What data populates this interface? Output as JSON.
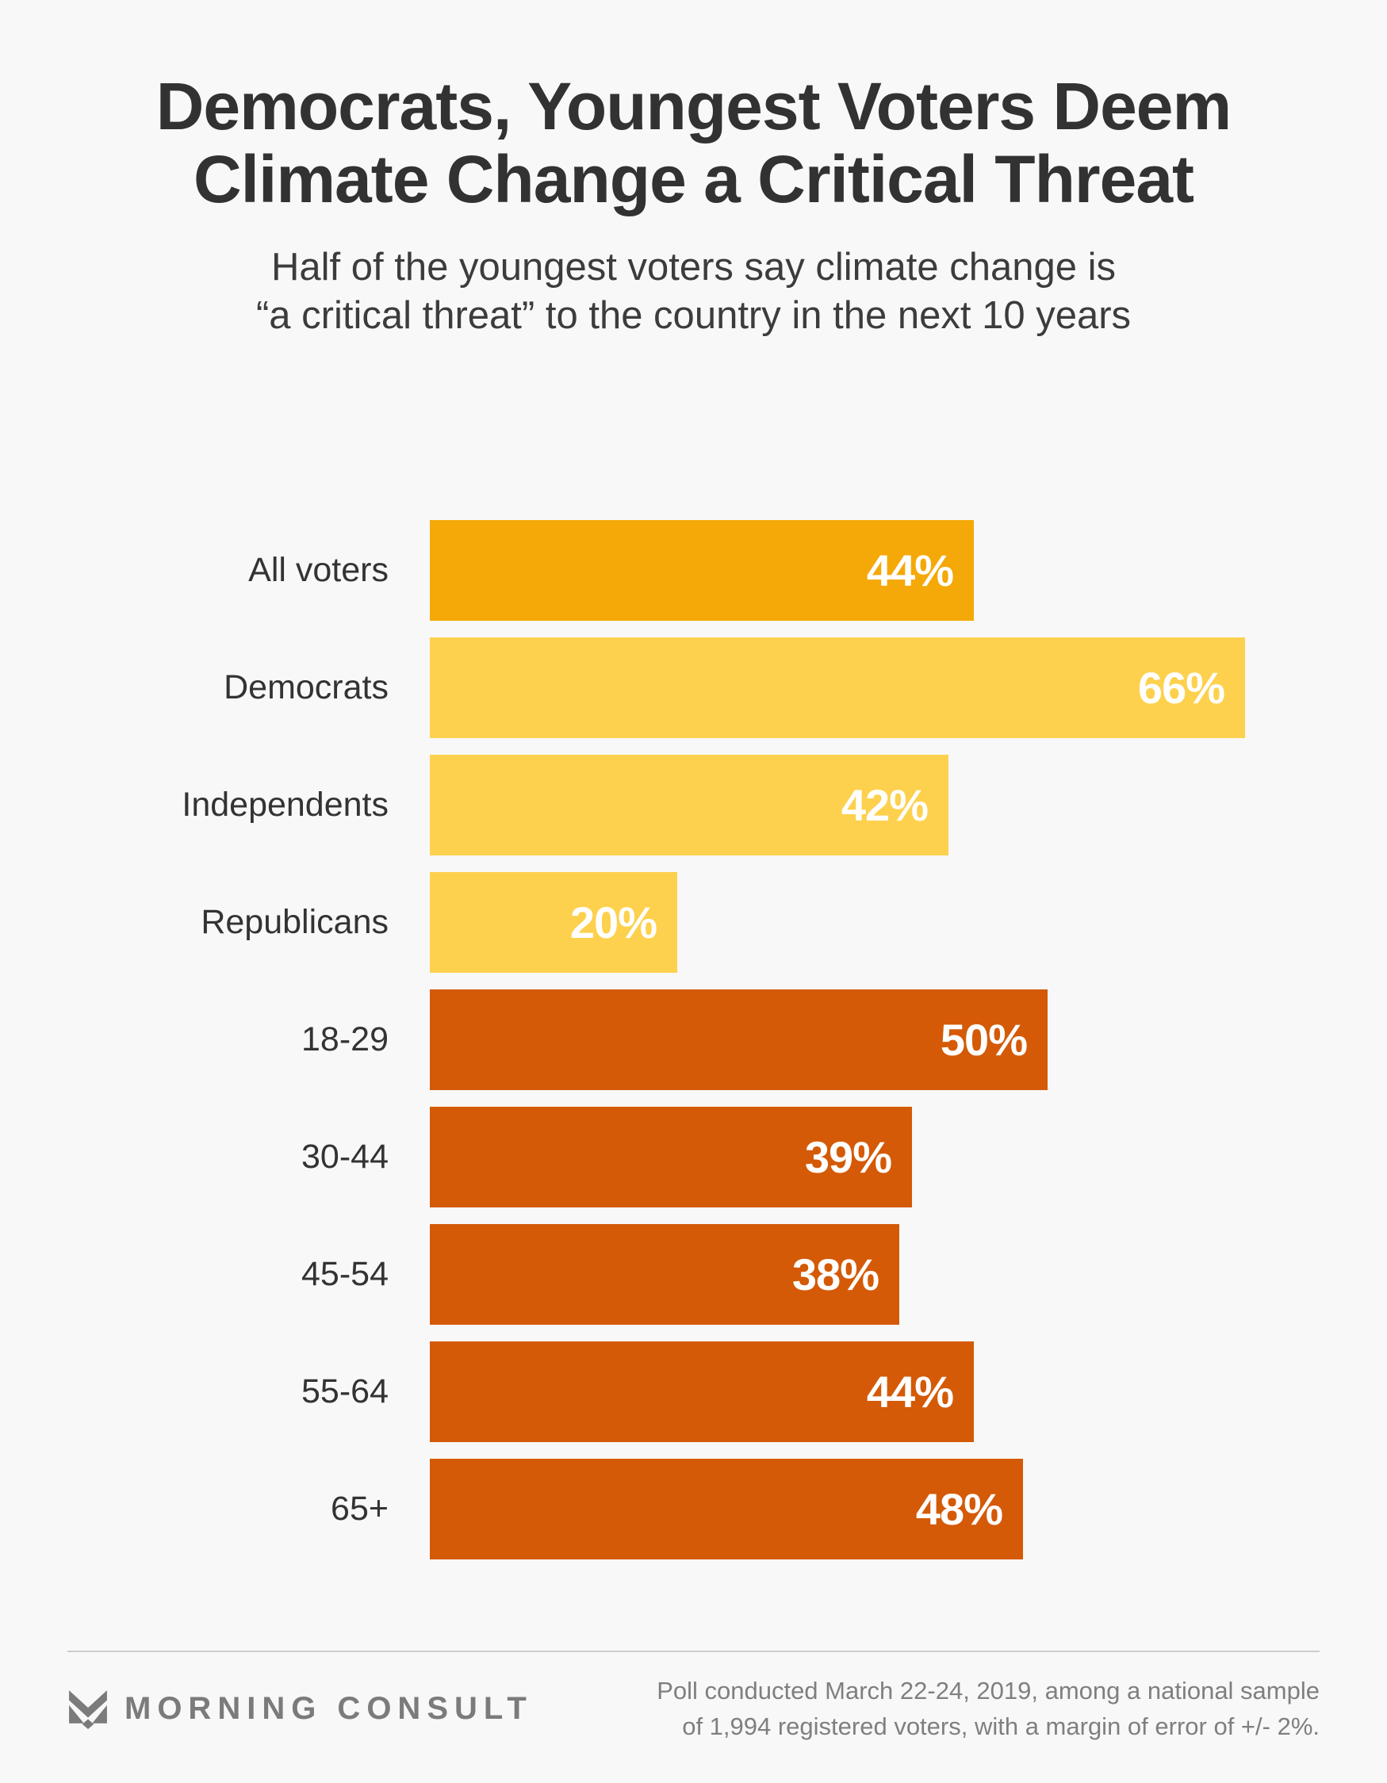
{
  "page": {
    "background": "#f8f8f8"
  },
  "header": {
    "title_line1": "Democrats, Youngest Voters Deem",
    "title_line2": "Climate Change a Critical Threat",
    "subtitle_line1": "Half of the youngest voters say climate change is",
    "subtitle_line2": "“a critical threat” to the country in the next 10 years"
  },
  "chart_data": {
    "type": "bar",
    "orientation": "horizontal",
    "title": "Democrats, Youngest Voters Deem Climate Change a Critical Threat",
    "subtitle": "Half of the youngest voters say climate change is “a critical threat” to the country in the next 10 years",
    "categories": [
      "All voters",
      "Democrats",
      "Independents",
      "Republicans",
      "18-29",
      "30-44",
      "45-54",
      "55-64",
      "65+"
    ],
    "values": [
      44,
      66,
      42,
      20,
      50,
      39,
      38,
      44,
      48
    ],
    "value_labels": [
      "44%",
      "66%",
      "42%",
      "20%",
      "50%",
      "39%",
      "38%",
      "44%",
      "48%"
    ],
    "bar_colors": [
      "#F4A908",
      "#FDD14D",
      "#FDD14D",
      "#FDD14D",
      "#D45A07",
      "#D45A07",
      "#D45A07",
      "#D45A07",
      "#D45A07"
    ],
    "value_label_position": "inside-right",
    "value_label_color": "#ffffff",
    "xlim": [
      0,
      66
    ],
    "grid": false,
    "legend": false
  },
  "footer": {
    "brand": "MORNING CONSULT",
    "brand_icon": "morning-consult-m-icon",
    "note_line1": "Poll conducted March 22-24, 2019, among a national sample",
    "note_line2": "of 1,994 registered voters, with a margin of error of +/- 2%.",
    "brand_color": "#7b7b7b"
  }
}
